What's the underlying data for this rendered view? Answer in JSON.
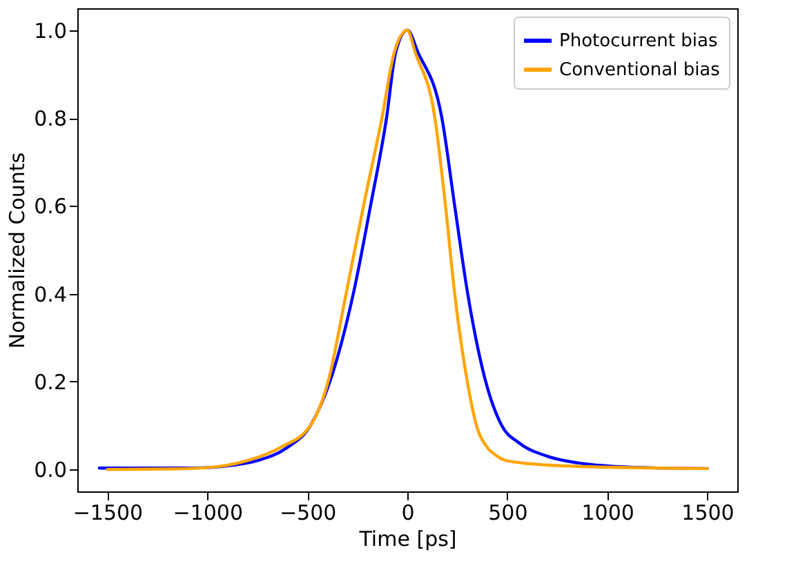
{
  "chart_data": {
    "type": "line",
    "xlabel": "Time [ps]",
    "ylabel": "Normalized Counts",
    "xlim": [
      -1650,
      1650
    ],
    "ylim": [
      -0.05,
      1.05
    ],
    "xticks": [
      -1500,
      -1000,
      -500,
      0,
      500,
      1000,
      1500
    ],
    "yticks": [
      {
        "value": 0,
        "label": "0.0"
      },
      0.2,
      0.4,
      0.6,
      0.8,
      {
        "value": 1,
        "label": "1.0"
      }
    ],
    "grid": false,
    "legend": "top right",
    "marker": "none",
    "line_style": "solid",
    "series": [
      {
        "name": "Photocurrent bias",
        "color": "#0000ff",
        "x": [
          -1540,
          -1200,
          -1000,
          -900,
          -750,
          -600,
          -484,
          -387,
          -270,
          -184,
          -104,
          -58,
          0,
          53,
          173,
          237,
          302,
          392,
          472,
          560,
          700,
          850,
          1000,
          1200,
          1500
        ],
        "values": [
          0.003,
          0.003,
          0.004,
          0.008,
          0.02,
          0.05,
          0.1,
          0.2,
          0.4,
          0.6,
          0.8,
          0.95,
          1.0,
          0.95,
          0.8,
          0.6,
          0.4,
          0.2,
          0.1,
          0.06,
          0.03,
          0.015,
          0.008,
          0.004,
          0.002
        ]
      },
      {
        "name": "Conventional bias",
        "color": "#ffa500",
        "x": [
          -1500,
          -1200,
          -1000,
          -800,
          -634,
          -484,
          -396,
          -306,
          -219,
          -127,
          -65,
          0,
          39,
          138,
          191,
          237,
          300,
          346,
          400,
          450,
          495,
          700,
          1000,
          1500
        ],
        "values": [
          0.0,
          0.001,
          0.004,
          0.02,
          0.05,
          0.1,
          0.2,
          0.4,
          0.6,
          0.8,
          0.95,
          1.0,
          0.95,
          0.8,
          0.6,
          0.4,
          0.2,
          0.1,
          0.05,
          0.03,
          0.02,
          0.01,
          0.005,
          0.002
        ]
      }
    ]
  }
}
